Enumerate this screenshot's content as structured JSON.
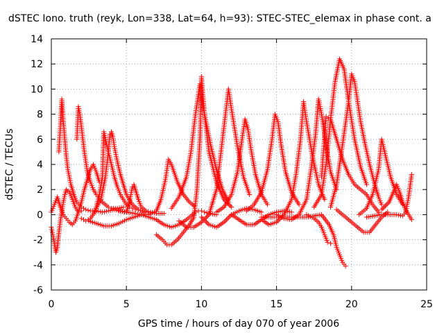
{
  "chart_data": {
    "type": "scatter",
    "title": "dSTEC Iono. truth (reyk, Lon=338, Lat=64, h=93): STEC-STEC_elemax in phase cont. a",
    "xlabel": "GPS time / hours of day 070 of year 2006",
    "ylabel": "dSTEC  / TECUs",
    "xlim": [
      0,
      25
    ],
    "ylim": [
      -6,
      14
    ],
    "xticks": [
      0,
      5,
      10,
      15,
      20,
      25
    ],
    "yticks": [
      -6,
      -4,
      -2,
      0,
      2,
      4,
      6,
      8,
      10,
      12,
      14
    ],
    "grid": true,
    "marker": "plus",
    "color": "#ff0000",
    "series": [
      {
        "x": [
          0.0,
          0.1,
          0.2,
          0.3,
          0.4,
          0.5,
          0.6,
          0.7,
          0.8,
          0.9,
          1.0,
          1.2,
          1.4,
          1.6,
          1.8,
          2.0
        ],
        "y": [
          -1.0,
          -1.6,
          -2.3,
          -3.0,
          -2.6,
          -1.5,
          -0.5,
          0.2,
          1.0,
          1.6,
          2.0,
          1.8,
          1.2,
          0.6,
          0.2,
          0.3
        ]
      },
      {
        "x": [
          0.0,
          0.2,
          0.4,
          0.6,
          0.8,
          1.0,
          1.2,
          1.4,
          1.6,
          1.8,
          2.0,
          2.2,
          2.4,
          2.6,
          2.8,
          3.0,
          3.2
        ],
        "y": [
          0.2,
          0.8,
          1.4,
          0.6,
          0.0,
          -0.3,
          -0.6,
          -0.8,
          -0.5,
          0.2,
          1.0,
          2.0,
          2.8,
          3.6,
          4.0,
          3.4,
          2.6
        ]
      },
      {
        "x": [
          0.5,
          0.6,
          0.7,
          0.8,
          0.9,
          1.0,
          1.1,
          1.3,
          1.5,
          1.7,
          2.0,
          2.3,
          2.6,
          3.0,
          3.4,
          3.8,
          4.2,
          4.6,
          5.0
        ],
        "y": [
          5.0,
          7.0,
          9.2,
          7.4,
          6.0,
          4.6,
          3.6,
          2.4,
          1.6,
          1.0,
          0.6,
          0.4,
          0.3,
          0.3,
          0.2,
          0.3,
          0.4,
          0.3,
          0.2
        ]
      },
      {
        "x": [
          1.7,
          1.8,
          1.9,
          2.0,
          2.1,
          2.2,
          2.4,
          2.6,
          2.8,
          3.0,
          3.2,
          3.4,
          3.6,
          3.8,
          4.0,
          4.4,
          4.8
        ],
        "y": [
          6.0,
          8.6,
          8.0,
          7.0,
          6.0,
          5.0,
          3.4,
          2.6,
          2.0,
          1.6,
          1.3,
          1.0,
          0.8,
          0.6,
          0.5,
          0.5,
          0.6
        ]
      },
      {
        "x": [
          2.0,
          2.3,
          2.6,
          2.9,
          3.2,
          3.4,
          3.5,
          3.6,
          3.8,
          4.0,
          4.2,
          4.4,
          4.6,
          4.8,
          5.0,
          5.2,
          5.4,
          5.6
        ],
        "y": [
          -0.3,
          -0.5,
          -0.3,
          0.2,
          1.6,
          3.0,
          6.6,
          6.0,
          5.0,
          4.0,
          3.0,
          2.2,
          1.6,
          1.2,
          0.8,
          0.6,
          0.5,
          0.4
        ]
      },
      {
        "x": [
          3.0,
          3.3,
          3.6,
          3.8,
          3.9,
          4.0,
          4.1,
          4.2,
          4.4,
          4.6,
          4.8,
          5.0,
          5.4,
          5.8,
          6.2
        ],
        "y": [
          0.5,
          1.2,
          3.0,
          5.0,
          6.4,
          6.6,
          6.2,
          5.4,
          4.2,
          3.2,
          2.4,
          1.6,
          0.8,
          0.4,
          0.2
        ]
      },
      {
        "x": [
          2.5,
          3.0,
          3.5,
          4.0,
          4.5,
          5.0,
          5.5,
          6.0
        ],
        "y": [
          -0.5,
          -0.7,
          -0.9,
          -0.9,
          -0.7,
          -0.4,
          -0.2,
          0.0
        ]
      },
      {
        "x": [
          5.0,
          5.2,
          5.4,
          5.5,
          5.6,
          5.8,
          6.0,
          6.3,
          6.6,
          7.0,
          7.5
        ],
        "y": [
          0.2,
          1.0,
          2.2,
          2.4,
          2.0,
          1.2,
          0.6,
          0.3,
          0.2,
          0.1,
          0.1
        ]
      },
      {
        "x": [
          4.5,
          5.0,
          5.5,
          6.0,
          6.5,
          7.0,
          7.3,
          7.6,
          7.8,
          8.0,
          8.4,
          8.8,
          9.2,
          9.5
        ],
        "y": [
          0.3,
          0.2,
          0.1,
          0.0,
          0.0,
          0.3,
          1.2,
          2.8,
          4.4,
          4.0,
          2.6,
          1.6,
          1.0,
          0.7
        ]
      },
      {
        "x": [
          6.0,
          6.5,
          7.0,
          7.5,
          8.0,
          8.5,
          9.0,
          9.4,
          9.6,
          9.8,
          10.0,
          10.2,
          10.5,
          11.0
        ],
        "y": [
          0.0,
          -0.2,
          -0.4,
          -0.8,
          -1.0,
          -0.8,
          -0.4,
          0.0,
          0.2,
          0.3,
          0.3,
          0.2,
          0.1,
          0.0
        ]
      },
      {
        "x": [
          7.0,
          7.4,
          7.7,
          8.0,
          8.4,
          8.8,
          9.2,
          9.5,
          9.7,
          9.9,
          10.0,
          10.2,
          10.5,
          11.0,
          11.5,
          12.0
        ],
        "y": [
          -1.6,
          -2.0,
          -2.4,
          -2.4,
          -2.0,
          -1.4,
          -0.8,
          -0.2,
          2.0,
          6.0,
          11.0,
          8.0,
          5.0,
          2.6,
          1.2,
          0.6
        ]
      },
      {
        "x": [
          8.0,
          8.5,
          9.0,
          9.3,
          9.6,
          9.9,
          10.2,
          10.6,
          11.0,
          11.4,
          11.8
        ],
        "y": [
          0.5,
          1.4,
          3.0,
          5.0,
          8.0,
          10.4,
          8.0,
          5.6,
          3.6,
          2.0,
          1.0
        ]
      },
      {
        "x": [
          8.5,
          9.0,
          9.5,
          10.0,
          10.5,
          11.0,
          11.3,
          11.6,
          11.8,
          12.0,
          12.4,
          12.8,
          13.2
        ],
        "y": [
          -0.5,
          -1.0,
          -1.0,
          -0.6,
          0.0,
          2.0,
          5.0,
          8.0,
          10.0,
          8.4,
          5.4,
          3.0,
          1.6
        ]
      },
      {
        "x": [
          10.0,
          10.5,
          11.0,
          11.5,
          12.0,
          12.5,
          13.0,
          13.5,
          14.0
        ],
        "y": [
          -0.2,
          -0.8,
          -1.0,
          -0.6,
          0.0,
          0.3,
          0.5,
          0.4,
          0.2
        ]
      },
      {
        "x": [
          11.0,
          11.5,
          12.0,
          12.4,
          12.7,
          12.9,
          13.1,
          13.3,
          13.6,
          14.0,
          14.4
        ],
        "y": [
          0.2,
          0.6,
          1.6,
          3.4,
          6.0,
          7.6,
          6.8,
          5.2,
          3.2,
          1.6,
          0.8
        ]
      },
      {
        "x": [
          12.0,
          12.5,
          13.0,
          13.5,
          14.0,
          14.5,
          15.0,
          15.5,
          16.0
        ],
        "y": [
          0.0,
          -0.4,
          -0.8,
          -0.8,
          -0.4,
          0.0,
          0.2,
          0.3,
          0.2
        ]
      },
      {
        "x": [
          13.0,
          13.5,
          14.0,
          14.4,
          14.7,
          14.9,
          15.1,
          15.3,
          15.6,
          16.0,
          16.5
        ],
        "y": [
          0.3,
          0.8,
          1.8,
          3.6,
          6.0,
          8.0,
          7.4,
          5.6,
          3.4,
          1.8,
          0.8
        ]
      },
      {
        "x": [
          14.0,
          14.5,
          15.0,
          15.5,
          16.0,
          16.3,
          16.6,
          16.8,
          17.0,
          17.4,
          17.8,
          18.2
        ],
        "y": [
          -0.4,
          -0.8,
          -0.6,
          0.0,
          1.2,
          3.2,
          6.0,
          9.0,
          7.4,
          4.6,
          2.4,
          1.2
        ]
      },
      {
        "x": [
          15.0,
          15.5,
          16.0,
          16.5,
          17.0,
          17.3,
          17.6,
          17.8,
          18.0,
          18.3,
          18.6,
          19.0
        ],
        "y": [
          0.0,
          -0.3,
          -0.4,
          0.0,
          1.2,
          3.6,
          6.4,
          9.2,
          8.0,
          5.6,
          3.4,
          2.0
        ]
      },
      {
        "x": [
          14.0,
          15.0,
          16.0,
          17.0,
          18.0,
          18.5,
          18.8,
          19.0,
          19.2,
          19.4,
          19.6
        ],
        "y": [
          -0.2,
          -0.2,
          -0.2,
          -0.2,
          0.0,
          -0.8,
          -1.6,
          -2.6,
          -3.2,
          -3.8,
          -4.1
        ]
      },
      {
        "x": [
          17.0,
          17.5,
          17.8,
          18.0,
          18.2,
          18.4,
          18.6
        ],
        "y": [
          0.0,
          -0.3,
          -0.6,
          -1.0,
          -1.6,
          -2.2,
          -2.3
        ]
      },
      {
        "x": [
          17.5,
          18.0,
          18.3,
          18.6,
          18.9,
          19.2,
          19.5,
          19.8,
          20.2,
          20.6,
          21.0
        ],
        "y": [
          0.6,
          1.6,
          4.0,
          7.6,
          10.6,
          12.4,
          11.6,
          9.0,
          6.0,
          3.8,
          2.4
        ]
      },
      {
        "x": [
          18.0,
          18.3,
          18.6,
          19.0,
          19.4,
          19.8,
          20.2,
          20.6,
          21.0,
          21.4,
          21.8
        ],
        "y": [
          3.0,
          7.8,
          7.6,
          6.0,
          4.4,
          3.2,
          2.4,
          2.0,
          1.6,
          0.8,
          0.2
        ]
      },
      {
        "x": [
          18.6,
          19.0,
          19.4,
          19.8,
          20.0,
          20.2,
          20.4,
          20.6,
          20.9,
          21.2,
          21.5,
          21.8,
          22.0
        ],
        "y": [
          0.6,
          2.4,
          5.6,
          9.0,
          11.2,
          10.6,
          9.0,
          7.4,
          5.6,
          4.0,
          2.6,
          1.4,
          0.8
        ]
      },
      {
        "x": [
          19.0,
          19.6,
          20.0,
          20.4,
          20.8,
          21.2,
          21.6,
          22.0,
          22.4
        ],
        "y": [
          0.4,
          -0.2,
          -0.6,
          -1.0,
          -1.4,
          -1.4,
          -0.8,
          -0.2,
          0.2
        ]
      },
      {
        "x": [
          20.5,
          21.0,
          21.4,
          21.8,
          22.0,
          22.2,
          22.6,
          23.0,
          23.4
        ],
        "y": [
          0.0,
          0.5,
          1.6,
          3.6,
          6.0,
          5.0,
          3.0,
          1.6,
          0.8
        ]
      },
      {
        "x": [
          21.0,
          21.5,
          22.0,
          22.5,
          23.0,
          23.4,
          23.6,
          23.8,
          24.0
        ],
        "y": [
          -0.2,
          -0.1,
          0.0,
          0.0,
          0.0,
          -0.1,
          0.2,
          1.4,
          3.2
        ]
      },
      {
        "x": [
          22.0,
          22.5,
          23.0,
          23.2,
          23.4,
          23.6,
          23.8,
          24.0
        ],
        "y": [
          0.4,
          1.0,
          2.4,
          1.8,
          1.0,
          0.4,
          0.0,
          -0.4
        ]
      }
    ]
  }
}
